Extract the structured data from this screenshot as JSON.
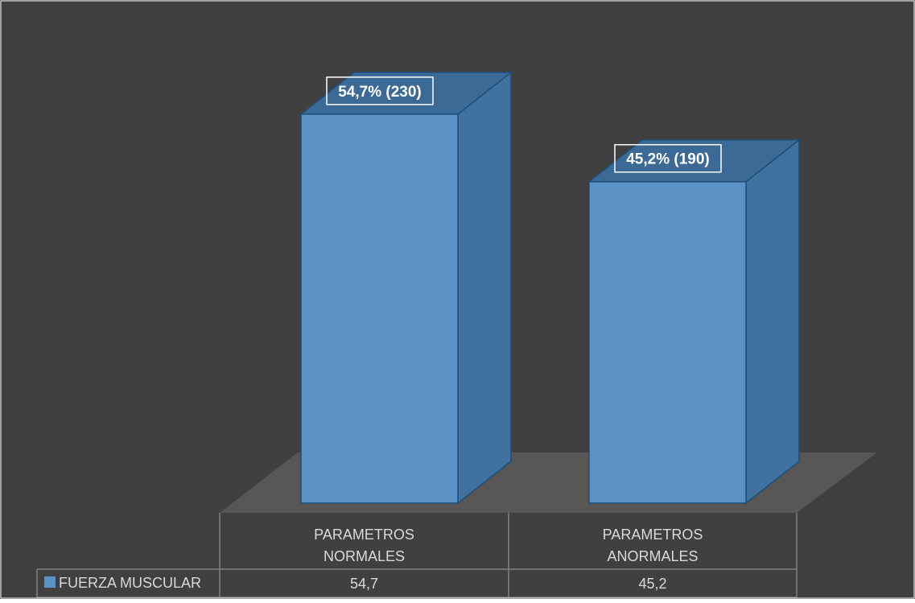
{
  "chart_data": {
    "type": "bar",
    "style": "3d-column-with-data-table",
    "categories": [
      "PARAMETROS NORMALES",
      "PARAMETROS ANORMALES"
    ],
    "category_lines": [
      [
        "PARAMETROS",
        "NORMALES"
      ],
      [
        "PARAMETROS",
        "ANORMALES"
      ]
    ],
    "series": [
      {
        "name": "FUERZA MUSCULAR",
        "values": [
          54.7,
          45.2
        ],
        "table_values": [
          "54,7",
          "45,2"
        ],
        "data_labels": [
          "54,7% (230)",
          "45,2% (190)"
        ],
        "color": "#5b93c7"
      }
    ],
    "ylim": [
      0,
      60
    ],
    "grid": false,
    "legend": "data-table",
    "colors": {
      "background": "#404040",
      "frame": "#ffffff",
      "floor": "#595656",
      "bar_front": "#5b93c7",
      "bar_side": "#41719e",
      "bar_top": "#3a6a95",
      "bar_edge": "#1f4e79",
      "table_line": "#7f7f7f",
      "text": "#d9d9d9",
      "label_text": "#ffffff"
    }
  }
}
